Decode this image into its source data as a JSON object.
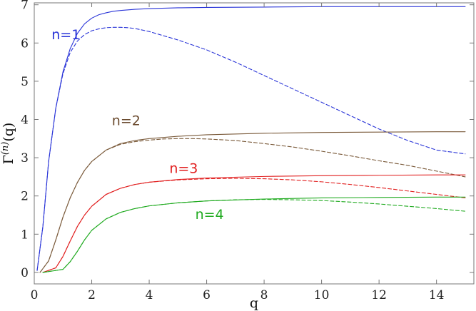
{
  "chart_data": {
    "type": "line",
    "title": "",
    "xlabel": "q",
    "ylabel": "Γ(n)(q)",
    "xlim": [
      0,
      15.3
    ],
    "ylim": [
      -0.3,
      7.05
    ],
    "xticks": [
      0,
      2,
      4,
      6,
      8,
      10,
      12,
      14
    ],
    "yticks": [
      0,
      1,
      2,
      3,
      4,
      5,
      6,
      7
    ],
    "grid": false,
    "legend": "none",
    "series": [
      {
        "name": "n=1",
        "style": "solid",
        "color": "#2a35d8",
        "x": [
          0.1,
          0.3,
          0.5,
          0.75,
          1.0,
          1.25,
          1.5,
          1.75,
          2.0,
          2.25,
          2.5,
          2.75,
          3.0,
          3.5,
          4.0,
          5.0,
          6.0,
          8.0,
          10.0,
          12.0,
          14.0,
          15.0
        ],
        "y": [
          0.05,
          1.2,
          2.9,
          4.3,
          5.25,
          5.85,
          6.25,
          6.5,
          6.65,
          6.74,
          6.79,
          6.83,
          6.85,
          6.88,
          6.9,
          6.92,
          6.93,
          6.94,
          6.95,
          6.95,
          6.95,
          6.95
        ]
      },
      {
        "name": "n=1",
        "style": "dashed",
        "color": "#2a35d8",
        "x": [
          0.1,
          0.3,
          0.5,
          0.75,
          1.0,
          1.25,
          1.5,
          1.75,
          2.0,
          2.25,
          2.5,
          2.75,
          3.0,
          3.25,
          3.5,
          4.0,
          5.0,
          6.0,
          7.0,
          8.0,
          9.0,
          10.0,
          11.0,
          12.0,
          13.0,
          14.0,
          15.0
        ],
        "y": [
          0.05,
          1.2,
          2.9,
          4.3,
          5.2,
          5.75,
          6.05,
          6.22,
          6.32,
          6.37,
          6.4,
          6.41,
          6.41,
          6.4,
          6.38,
          6.3,
          6.08,
          5.82,
          5.5,
          5.15,
          4.8,
          4.45,
          4.1,
          3.75,
          3.45,
          3.2,
          3.1
        ]
      },
      {
        "name": "n=2",
        "style": "solid",
        "color": "#7a5a3a",
        "x": [
          0.2,
          0.5,
          0.75,
          1.0,
          1.25,
          1.5,
          1.75,
          2.0,
          2.5,
          3.0,
          3.5,
          4.0,
          5.0,
          6.0,
          8.0,
          10.0,
          12.0,
          14.0,
          15.0
        ],
        "y": [
          0.0,
          0.3,
          0.85,
          1.45,
          1.95,
          2.35,
          2.67,
          2.9,
          3.2,
          3.37,
          3.45,
          3.5,
          3.56,
          3.6,
          3.64,
          3.66,
          3.67,
          3.68,
          3.68
        ]
      },
      {
        "name": "n=2",
        "style": "dashed",
        "color": "#7a5a3a",
        "x": [
          0.2,
          0.5,
          0.75,
          1.0,
          1.25,
          1.5,
          1.75,
          2.0,
          2.5,
          3.0,
          3.5,
          4.0,
          4.5,
          5.0,
          5.5,
          6.0,
          7.0,
          8.0,
          9.0,
          10.0,
          11.0,
          12.0,
          13.0,
          14.0,
          15.0
        ],
        "y": [
          0.0,
          0.3,
          0.85,
          1.45,
          1.95,
          2.35,
          2.67,
          2.9,
          3.2,
          3.35,
          3.42,
          3.46,
          3.49,
          3.5,
          3.5,
          3.49,
          3.45,
          3.37,
          3.28,
          3.17,
          3.05,
          2.92,
          2.8,
          2.65,
          2.5
        ]
      },
      {
        "name": "n=3",
        "style": "solid",
        "color": "#e11f1f",
        "x": [
          0.3,
          0.75,
          1.0,
          1.25,
          1.5,
          1.75,
          2.0,
          2.5,
          3.0,
          3.5,
          4.0,
          5.0,
          6.0,
          8.0,
          10.0,
          12.0,
          14.0,
          15.0
        ],
        "y": [
          0.0,
          0.12,
          0.42,
          0.82,
          1.2,
          1.5,
          1.73,
          2.04,
          2.2,
          2.3,
          2.36,
          2.43,
          2.47,
          2.51,
          2.53,
          2.54,
          2.55,
          2.55
        ]
      },
      {
        "name": "n=3",
        "style": "dashed",
        "color": "#e11f1f",
        "x": [
          0.3,
          0.75,
          1.0,
          1.25,
          1.5,
          1.75,
          2.0,
          2.5,
          3.0,
          3.5,
          4.0,
          5.0,
          6.0,
          7.0,
          8.0,
          9.0,
          10.0,
          11.0,
          12.0,
          13.0,
          14.0,
          15.0
        ],
        "y": [
          0.0,
          0.12,
          0.42,
          0.82,
          1.2,
          1.5,
          1.73,
          2.04,
          2.2,
          2.3,
          2.36,
          2.42,
          2.45,
          2.46,
          2.45,
          2.42,
          2.37,
          2.3,
          2.22,
          2.13,
          2.04,
          1.95
        ]
      },
      {
        "name": "n=4",
        "style": "solid",
        "color": "#1faa1f",
        "x": [
          0.3,
          1.0,
          1.25,
          1.5,
          1.75,
          2.0,
          2.5,
          3.0,
          3.5,
          4.0,
          5.0,
          6.0,
          8.0,
          10.0,
          12.0,
          14.0,
          15.0
        ],
        "y": [
          0.0,
          0.08,
          0.28,
          0.55,
          0.85,
          1.1,
          1.4,
          1.57,
          1.67,
          1.74,
          1.82,
          1.87,
          1.92,
          1.95,
          1.96,
          1.97,
          1.97
        ]
      },
      {
        "name": "n=4",
        "style": "dashed",
        "color": "#1faa1f",
        "x": [
          0.3,
          1.0,
          1.25,
          1.5,
          1.75,
          2.0,
          2.5,
          3.0,
          3.5,
          4.0,
          5.0,
          6.0,
          7.0,
          8.0,
          9.0,
          10.0,
          11.0,
          12.0,
          13.0,
          14.0,
          15.0
        ],
        "y": [
          0.0,
          0.08,
          0.28,
          0.55,
          0.85,
          1.1,
          1.4,
          1.57,
          1.67,
          1.74,
          1.82,
          1.87,
          1.9,
          1.91,
          1.9,
          1.88,
          1.84,
          1.79,
          1.73,
          1.67,
          1.6
        ]
      }
    ],
    "annotations": [
      {
        "text": "n=1",
        "color": "#2a35d8",
        "x": 1.1,
        "y": 6.1
      },
      {
        "text": "n=2",
        "color": "#6a4a2e",
        "x": 3.2,
        "y": 3.85
      },
      {
        "text": "n=3",
        "color": "#e11f1f",
        "x": 5.2,
        "y": 2.6
      },
      {
        "text": "n=4",
        "color": "#1faa1f",
        "x": 6.1,
        "y": 1.4
      }
    ]
  }
}
